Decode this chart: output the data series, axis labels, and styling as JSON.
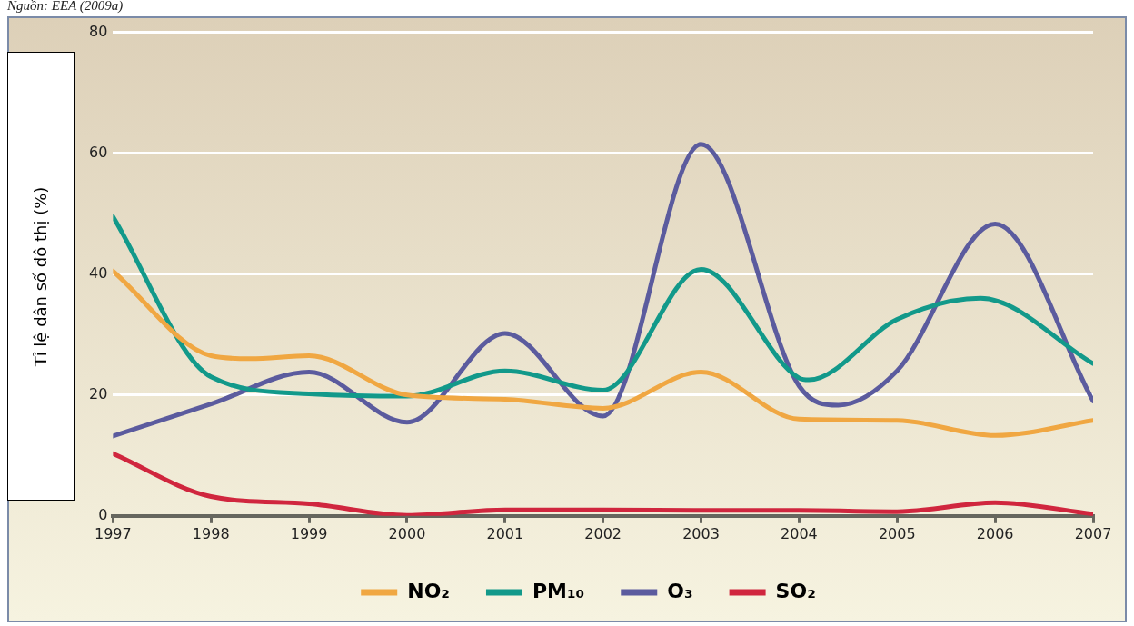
{
  "chart_data": {
    "type": "line",
    "ylabel": "Tỉ lệ dân số đô thị (%)",
    "annotations": [
      "Nguồn: EEA (2009a)"
    ],
    "xlim": [
      1997,
      2007
    ],
    "xticks": [
      1997,
      1998,
      1999,
      2000,
      2001,
      2002,
      2003,
      2004,
      2005,
      2006,
      2007
    ],
    "ylim": [
      0,
      80
    ],
    "yticks": [
      0,
      20,
      40,
      60,
      80
    ],
    "grid": "y",
    "legend": "bottom",
    "marker": "none",
    "line_style": "solid",
    "series": [
      {
        "name": "NO₂",
        "color": "#f0a742",
        "x": [
          1997,
          1998,
          1998.4,
          1999,
          2000,
          2001,
          2002,
          2003,
          2004,
          2005,
          2006,
          2007
        ],
        "values": [
          40.5,
          26.5,
          26,
          26.5,
          20,
          19.3,
          17.8,
          23.8,
          16,
          15.8,
          13.3,
          15.8
        ]
      },
      {
        "name": "PM₁₀",
        "color": "#12998a",
        "x": [
          1997,
          1998,
          1999,
          2000,
          2001,
          2002,
          2003,
          2004,
          2004.1,
          2005,
          2005.85,
          2007
        ],
        "values": [
          49.5,
          23,
          20.2,
          19.8,
          24,
          20.8,
          40.8,
          22.8,
          22.5,
          32.5,
          36,
          25.2
        ]
      },
      {
        "name": "O₃",
        "color": "#5b5b9e",
        "x": [
          1997,
          1998,
          1999,
          2000,
          2001,
          2002,
          2003,
          2004,
          2004.4,
          2005,
          2006,
          2007
        ],
        "values": [
          13.2,
          18.5,
          23.8,
          15.5,
          30.2,
          16.5,
          61.5,
          21.5,
          18.3,
          24,
          48.3,
          19
        ]
      },
      {
        "name": "SO₂",
        "color": "#d0263e",
        "x": [
          1997,
          1998,
          1999,
          2000,
          2001,
          2002,
          2003,
          2004,
          2005,
          2006,
          2007
        ],
        "values": [
          10.3,
          3.2,
          2,
          0.1,
          1,
          1,
          0.9,
          0.9,
          0.7,
          2.2,
          0.3
        ]
      }
    ]
  }
}
